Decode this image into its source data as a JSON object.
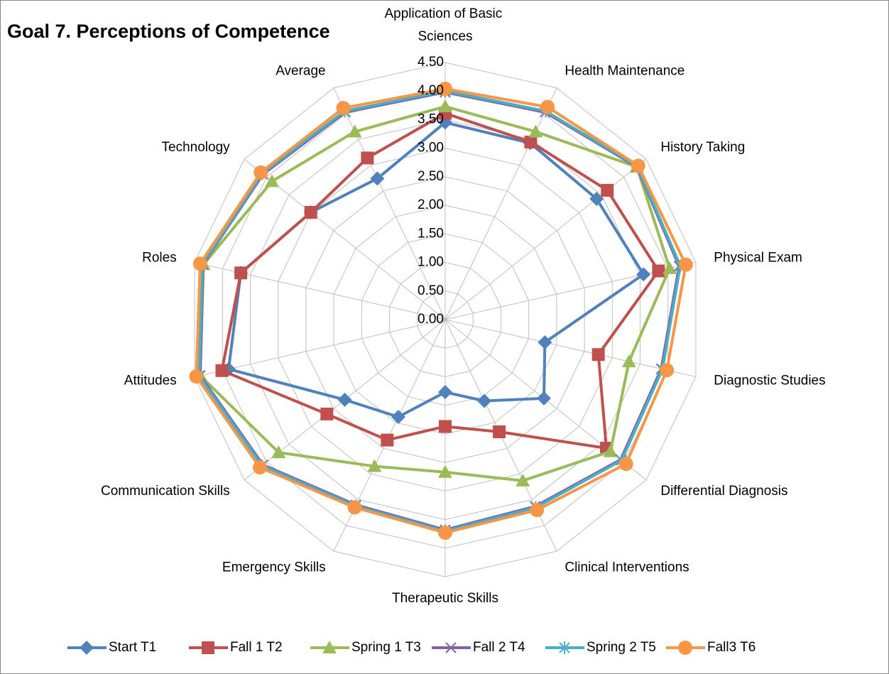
{
  "chart_data": {
    "type": "radar",
    "title": "Goal 7. Perceptions of Competence",
    "categories": [
      "Application of Basic Sciences",
      "Health Maintenance",
      "History Taking",
      "Physical Exam",
      "Diagnostic Studies",
      "Differential Diagnosis",
      "Clinical Interventions",
      "Therapeutic Skills",
      "Emergency Skills",
      "Communication Skills",
      "Attitudes",
      "Roles",
      "Technology",
      "Average"
    ],
    "ylim": [
      0,
      4.5
    ],
    "yticks": [
      {
        "value": 0,
        "label": "0.00"
      },
      {
        "value": 0.5,
        "label": "0.50"
      },
      {
        "value": 1,
        "label": "1.00"
      },
      {
        "value": 1.5,
        "label": "1.50"
      },
      {
        "value": 2,
        "label": "2.00"
      },
      {
        "value": 2.5,
        "label": "2.50"
      },
      {
        "value": 3,
        "label": "3.00"
      },
      {
        "value": 3.5,
        "label": "3.50"
      },
      {
        "value": 4,
        "label": "4.00"
      },
      {
        "value": 4.5,
        "label": "4.50"
      }
    ],
    "grid": true,
    "legend": "bottom",
    "series": [
      {
        "name": "Start T1",
        "color": "#4f81bd",
        "marker": "diamond",
        "values": [
          3.45,
          3.43,
          3.39,
          3.56,
          1.79,
          2.21,
          1.58,
          1.27,
          1.89,
          2.25,
          3.89,
          3.67,
          3.01,
          2.74
        ]
      },
      {
        "name": "Fall 1 T2",
        "color": "#c0504d",
        "marker": "square",
        "values": [
          3.61,
          3.45,
          3.63,
          3.83,
          2.75,
          3.61,
          2.18,
          1.87,
          2.34,
          2.65,
          4.01,
          3.67,
          3.01,
          3.14
        ]
      },
      {
        "name": "Spring 1 T3",
        "color": "#9bbb59",
        "marker": "triangle",
        "values": [
          3.73,
          3.65,
          4.29,
          4.03,
          3.3,
          3.7,
          3.13,
          2.67,
          2.85,
          3.73,
          4.4,
          4.34,
          3.88,
          3.65
        ]
      },
      {
        "name": "Fall 2 T4",
        "color": "#8064a2",
        "marker": "x",
        "values": [
          3.98,
          4.03,
          4.29,
          4.2,
          3.88,
          3.93,
          3.63,
          3.68,
          3.6,
          4.08,
          4.4,
          4.35,
          4.08,
          4.03
        ]
      },
      {
        "name": "Spring 2 T5",
        "color": "#4bacc6",
        "marker": "star",
        "values": [
          4.0,
          4.05,
          4.3,
          4.22,
          3.9,
          3.95,
          3.65,
          3.7,
          3.62,
          4.1,
          4.42,
          4.36,
          4.1,
          4.05
        ]
      },
      {
        "name": "Fall3 T6",
        "color": "#f79646",
        "marker": "circle",
        "values": [
          4.04,
          4.13,
          4.32,
          4.32,
          3.98,
          4.05,
          3.7,
          3.73,
          3.65,
          4.15,
          4.47,
          4.4,
          4.13,
          4.11
        ]
      }
    ]
  }
}
